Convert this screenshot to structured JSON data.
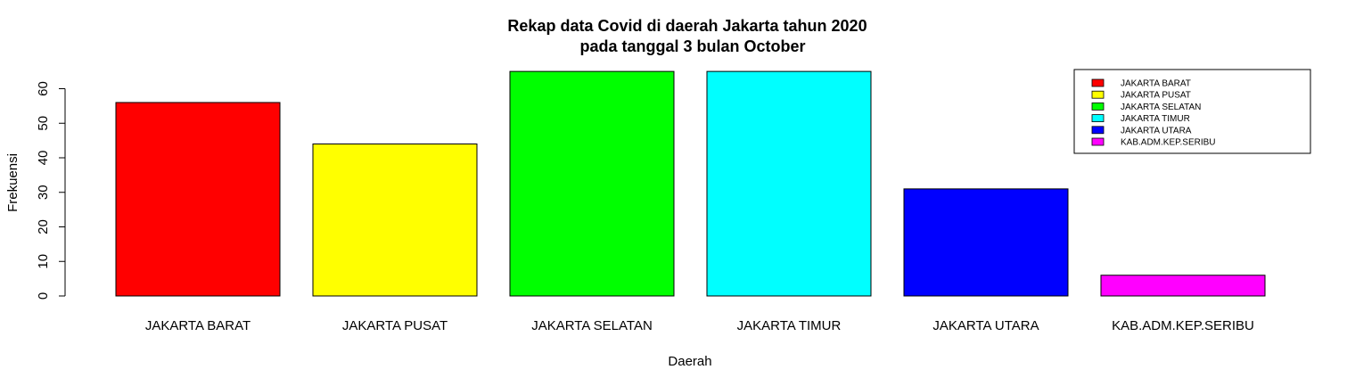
{
  "chart_data": {
    "type": "bar",
    "title": "Rekap data Covid di daerah Jakarta tahun 2020",
    "subtitle": "pada tanggal 3 bulan October",
    "xlabel": "Daerah",
    "ylabel": "Frekuensi",
    "ylim": [
      0,
      65
    ],
    "yticks": [
      "0",
      "10",
      "20",
      "30",
      "40",
      "50",
      "60"
    ],
    "categories": [
      "JAKARTA BARAT",
      "JAKARTA PUSAT",
      "JAKARTA SELATAN",
      "JAKARTA TIMUR",
      "JAKARTA UTARA",
      "KAB.ADM.KEP.SERIBU"
    ],
    "values": [
      56,
      44,
      65,
      65,
      31,
      6
    ],
    "colors": [
      "#ff0000",
      "#ffff00",
      "#00ff00",
      "#00ffff",
      "#0000ff",
      "#ff00ff"
    ],
    "legend": {
      "position": "top-right",
      "entries": [
        "JAKARTA BARAT",
        "JAKARTA PUSAT",
        "JAKARTA SELATAN",
        "JAKARTA TIMUR",
        "JAKARTA UTARA",
        "KAB.ADM.KEP.SERIBU"
      ]
    },
    "grid": false
  }
}
